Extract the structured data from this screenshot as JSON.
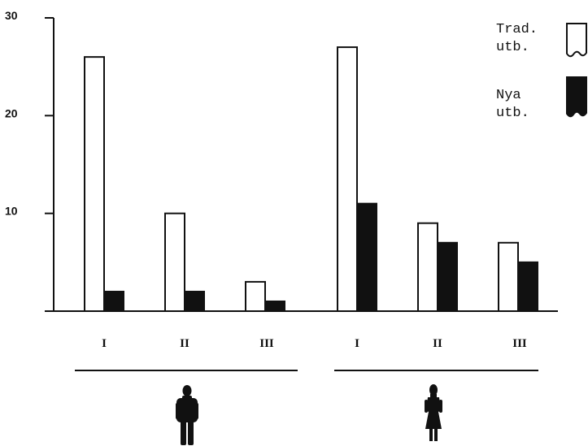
{
  "chart_data": {
    "type": "bar",
    "title": "",
    "xlabel": "",
    "ylabel": "",
    "ylim": [
      0,
      30
    ],
    "yticks": [
      "10",
      "20",
      "30"
    ],
    "grid": false,
    "legend": {
      "placement": "top-right",
      "entries": [
        {
          "line1": "Trad.",
          "line2": "utb.",
          "fill": "#ffffff"
        },
        {
          "line1": "Nya",
          "line2": "utb.",
          "fill": "#000000"
        }
      ]
    },
    "groups": [
      {
        "icon": "man-icon",
        "categories": [
          "I",
          "II",
          "III"
        ],
        "series": [
          {
            "values": [
              26,
              10,
              3
            ]
          },
          {
            "values": [
              2,
              2,
              1
            ]
          }
        ]
      },
      {
        "icon": "woman-icon",
        "categories": [
          "I",
          "II",
          "III"
        ],
        "series": [
          {
            "values": [
              27,
              9,
              7
            ]
          },
          {
            "values": [
              11,
              7,
              5
            ]
          }
        ]
      }
    ]
  }
}
